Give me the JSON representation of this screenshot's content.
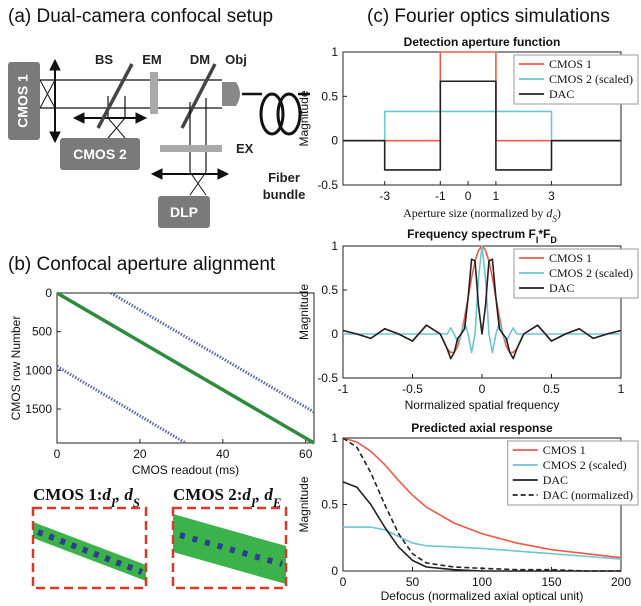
{
  "panel_a": {
    "title": "(a) Dual-camera confocal setup",
    "components": {
      "cmos1": "CMOS 1",
      "bs": "BS",
      "em": "EM",
      "dm": "DM",
      "obj": "Obj",
      "cmos2": "CMOS 2",
      "ex": "EX",
      "dlp": "DLP",
      "fiber": [
        "Fiber",
        "bundle"
      ]
    }
  },
  "panel_b": {
    "title": "(b) Confocal aperture alignment",
    "insets": [
      {
        "prefix": "CMOS 1:",
        "terms": [
          {
            "text": "d",
            "sub": "I",
            "math": true
          },
          {
            "text": ", d",
            "sub": "S",
            "math": true
          }
        ]
      },
      {
        "prefix": "CMOS 2:",
        "terms": [
          {
            "text": "d",
            "sub": "I",
            "math": true
          },
          {
            "text": ", d",
            "sub": "E",
            "math": true
          }
        ]
      }
    ]
  },
  "panel_c": {
    "title": "(c) Fourier optics simulations"
  },
  "chart_data": [
    {
      "type": "line",
      "xlabel": "CMOS readout (ms)",
      "ylabel": "CMOS row Number",
      "xlim": [
        0,
        62
      ],
      "ylim": [
        0,
        1940
      ],
      "y_inverted": true,
      "xticks": [
        0,
        20,
        40,
        60
      ],
      "yticks": [
        0,
        500,
        1000,
        1500
      ],
      "series": [
        {
          "color": "#2e8b3e",
          "style": "solid",
          "x": [
            0,
            62
          ],
          "values": [
            0,
            1940
          ]
        },
        {
          "color": "#5a6bb0",
          "style": "dotted",
          "x": [
            13,
            62
          ],
          "values": [
            0,
            1540
          ]
        },
        {
          "color": "#5a6bb0",
          "style": "dotted",
          "x": [
            0,
            31
          ],
          "values": [
            950,
            1940
          ]
        }
      ]
    },
    {
      "type": "line",
      "title": "Detection aperture function",
      "xlabel_parts": [
        {
          "text": "Aperture size (normalized by "
        },
        {
          "text": "d",
          "sub": "S",
          "math": true
        },
        {
          "text": ")"
        }
      ],
      "ylabel": "Magnitude",
      "xlim": [
        -4.5,
        5.5
      ],
      "ylim": [
        -0.5,
        1
      ],
      "xticks": [
        -3,
        -1,
        0,
        1,
        3
      ],
      "yticks": [
        -0.5,
        0,
        0.5,
        1
      ],
      "legend": "upper right",
      "series": [
        {
          "name": "CMOS 1",
          "color": "#f05a48",
          "style": "solid",
          "x": [
            -4.5,
            -1,
            -1,
            1,
            1,
            5.5
          ],
          "values": [
            0,
            0,
            1,
            1,
            0,
            0
          ]
        },
        {
          "name": "CMOS 2 (scaled)",
          "color": "#6ec6cf",
          "style": "solid",
          "x": [
            -4.5,
            -3,
            -3,
            3,
            3,
            5.5
          ],
          "values": [
            0,
            0,
            0.33,
            0.33,
            0,
            0
          ]
        },
        {
          "name": "DAC",
          "color": "#222222",
          "style": "solid",
          "x": [
            -4.5,
            -3,
            -3,
            -1,
            -1,
            1,
            1,
            3,
            3,
            5.5
          ],
          "values": [
            0,
            0,
            -0.33,
            -0.33,
            0.67,
            0.67,
            -0.33,
            -0.33,
            0,
            0
          ]
        }
      ]
    },
    {
      "type": "line",
      "title_parts": [
        {
          "text": "Frequency spectrum F",
          "sub": "I"
        },
        {
          "text": "*F",
          "sub": "D"
        }
      ],
      "xlabel": "Normalized spatial frequency",
      "ylabel": "Magnitude",
      "xlim": [
        -1,
        1
      ],
      "ylim": [
        -0.5,
        1
      ],
      "xticks": [
        -1,
        -0.5,
        0,
        0.5,
        1
      ],
      "yticks": [
        -0.5,
        0,
        0.5,
        1
      ],
      "legend": "upper right",
      "x": [
        -1,
        -0.9,
        -0.8,
        -0.7,
        -0.6,
        -0.5,
        -0.4,
        -0.3,
        -0.25,
        -0.225,
        -0.2,
        -0.175,
        -0.15,
        -0.125,
        -0.1,
        -0.075,
        -0.05,
        -0.025,
        0,
        0.025,
        0.05,
        0.075,
        0.1,
        0.125,
        0.15,
        0.175,
        0.2,
        0.225,
        0.25,
        0.3,
        0.4,
        0.5,
        0.6,
        0.7,
        0.8,
        0.9,
        1
      ],
      "series": [
        {
          "name": "CMOS 1",
          "color": "#f05a48",
          "style": "solid",
          "values": [
            0.04,
            0,
            -0.05,
            0.06,
            0,
            -0.08,
            0.1,
            0,
            -0.17,
            -0.21,
            -0.21,
            -0.14,
            0,
            0.19,
            0.41,
            0.64,
            0.83,
            0.95,
            1,
            0.95,
            0.83,
            0.64,
            0.41,
            0.19,
            0,
            -0.14,
            -0.21,
            -0.21,
            -0.17,
            0,
            0.1,
            -0.08,
            0,
            0.06,
            -0.05,
            0,
            0.04
          ]
        },
        {
          "name": "CMOS 2 (scaled)",
          "color": "#6ec6cf",
          "style": "solid",
          "values": [
            0,
            0,
            0,
            0,
            0,
            0,
            0,
            0,
            0,
            0.07,
            0,
            -0.09,
            0,
            0.13,
            0,
            -0.21,
            0,
            0.64,
            1,
            0.64,
            0,
            -0.21,
            0,
            0.13,
            0,
            -0.09,
            0,
            0.07,
            0,
            0,
            0,
            0,
            0,
            0,
            0,
            0,
            0
          ]
        },
        {
          "name": "DAC",
          "color": "#222222",
          "style": "solid",
          "values": [
            0.04,
            0,
            -0.05,
            0.06,
            0,
            -0.08,
            0.1,
            0,
            -0.17,
            -0.28,
            -0.21,
            -0.05,
            0,
            0.06,
            0.41,
            0.85,
            0.83,
            0.32,
            0,
            0.32,
            0.83,
            0.85,
            0.41,
            0.06,
            0,
            -0.05,
            -0.21,
            -0.28,
            -0.17,
            0,
            0.1,
            -0.08,
            0,
            0.06,
            -0.05,
            0,
            0.04
          ]
        }
      ]
    },
    {
      "type": "line",
      "title": "Predicted axial response",
      "xlabel": "Defocus (normalized axial optical unit)",
      "ylabel": "Magnitude",
      "xlim": [
        0,
        200
      ],
      "ylim": [
        0,
        1
      ],
      "xticks": [
        0,
        50,
        100,
        150,
        200
      ],
      "yticks": [
        0,
        0.5,
        1
      ],
      "legend": "upper right",
      "x": [
        0,
        10,
        20,
        30,
        40,
        50,
        60,
        80,
        100,
        125,
        150,
        175,
        200
      ],
      "series": [
        {
          "name": "CMOS 1",
          "color": "#f05a48",
          "style": "solid",
          "values": [
            1,
            0.97,
            0.9,
            0.8,
            0.68,
            0.57,
            0.48,
            0.36,
            0.28,
            0.21,
            0.16,
            0.13,
            0.1
          ]
        },
        {
          "name": "CMOS 2 (scaled)",
          "color": "#6ec6cf",
          "style": "solid",
          "values": [
            0.33,
            0.33,
            0.33,
            0.31,
            0.26,
            0.21,
            0.19,
            0.18,
            0.17,
            0.15,
            0.13,
            0.11,
            0.09
          ]
        },
        {
          "name": "DAC",
          "color": "#222222",
          "style": "solid",
          "values": [
            0.67,
            0.63,
            0.5,
            0.33,
            0.18,
            0.08,
            0.03,
            0.01,
            0,
            0,
            0,
            0,
            0
          ]
        },
        {
          "name": "DAC (normalized)",
          "color": "#222222",
          "style": "dashed",
          "values": [
            1,
            0.93,
            0.74,
            0.5,
            0.28,
            0.13,
            0.06,
            0.03,
            0.02,
            0.01,
            0.01,
            0,
            0
          ]
        }
      ]
    }
  ]
}
